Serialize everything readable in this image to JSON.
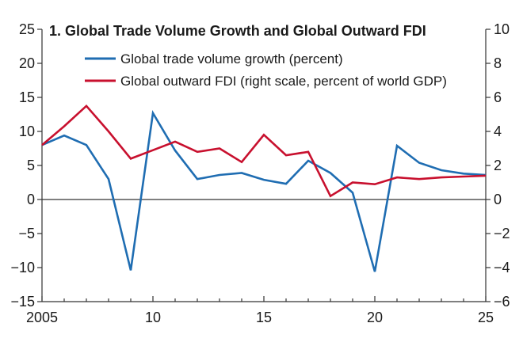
{
  "chart_data": {
    "type": "line",
    "title": "1. Global Trade Volume Growth and Global Outward FDI",
    "x": [
      2005,
      2006,
      2007,
      2008,
      2009,
      2010,
      2011,
      2012,
      2013,
      2014,
      2015,
      2016,
      2017,
      2018,
      2019,
      2020,
      2021,
      2022,
      2023,
      2024,
      2025
    ],
    "x_tick_labels": [
      "2005",
      "10",
      "15",
      "20",
      "25"
    ],
    "x_tick_values": [
      2005,
      2010,
      2015,
      2020,
      2025
    ],
    "xlim": [
      2005,
      2025
    ],
    "y_left": {
      "ylim": [
        -15,
        25
      ],
      "ticks": [
        25,
        20,
        15,
        10,
        5,
        0,
        -5,
        -10,
        -15
      ],
      "tick_labels": [
        "25",
        "20",
        "15",
        "10",
        "5",
        "0",
        "−5",
        "−10",
        "−15"
      ]
    },
    "y_right": {
      "ylim": [
        -6,
        10
      ],
      "ticks": [
        10,
        8,
        6,
        4,
        2,
        0,
        -2,
        -4,
        -6
      ],
      "tick_labels": [
        "10",
        "8",
        "6",
        "4",
        "2",
        "0",
        "−2",
        "−4",
        "−6"
      ]
    },
    "zero_line": true,
    "grid": false,
    "legend_position": "top-center",
    "series": [
      {
        "name": "Global trade volume growth (percent)",
        "axis": "left",
        "color": "#1f6db2",
        "values": [
          8.0,
          9.4,
          8.0,
          3.0,
          -10.4,
          12.7,
          7.2,
          3.0,
          3.6,
          3.9,
          2.9,
          2.3,
          5.7,
          3.9,
          1.0,
          -10.6,
          7.9,
          5.4,
          4.3,
          3.8,
          3.6
        ]
      },
      {
        "name": "Global outward FDI (right scale, percent of world GDP)",
        "axis": "right",
        "color": "#c8102e",
        "values": [
          3.2,
          4.3,
          5.5,
          4.0,
          2.4,
          2.9,
          3.4,
          2.8,
          3.0,
          2.2,
          3.8,
          2.6,
          2.8,
          0.2,
          1.0,
          0.9,
          1.3,
          1.2,
          1.3,
          1.35,
          1.4
        ]
      }
    ]
  }
}
